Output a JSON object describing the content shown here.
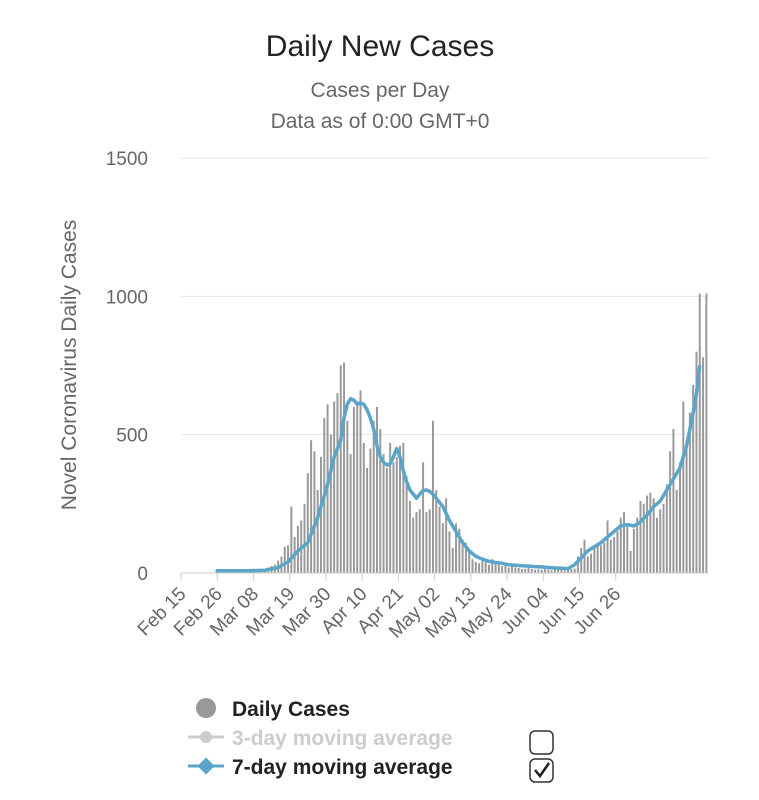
{
  "chart_data": {
    "type": "bar",
    "title": "Daily New Cases",
    "subtitle_lines": [
      "Cases per Day",
      "Data as of 0:00 GMT+0"
    ],
    "ylabel": "Novel Coronavirus Daily Cases",
    "xlabel": "",
    "ylim": [
      0,
      1500
    ],
    "yticks": [
      0,
      500,
      1000,
      1500
    ],
    "start_date": "Feb 15",
    "xtick_labels": [
      "Feb 15",
      "Feb 26",
      "Mar 08",
      "Mar 19",
      "Mar 30",
      "Apr 10",
      "Apr 21",
      "May 02",
      "May 13",
      "May 24",
      "Jun 04",
      "Jun 15",
      "Jun 26"
    ],
    "grid": true,
    "legend_position": "bottom",
    "series": [
      {
        "name": "Daily Cases",
        "type": "bar",
        "color": "#999999",
        "values": [
          0,
          0,
          0,
          0,
          0,
          0,
          0,
          0,
          0,
          0,
          0,
          0,
          0,
          0,
          0,
          1,
          2,
          3,
          3,
          4,
          5,
          6,
          8,
          10,
          12,
          15,
          20,
          25,
          30,
          45,
          60,
          95,
          100,
          240,
          130,
          170,
          190,
          250,
          360,
          480,
          440,
          300,
          420,
          560,
          610,
          500,
          620,
          650,
          750,
          760,
          550,
          430,
          600,
          620,
          660,
          470,
          380,
          450,
          550,
          600,
          520,
          430,
          380,
          470,
          400,
          420,
          460,
          470,
          350,
          260,
          200,
          220,
          230,
          400,
          220,
          230,
          550,
          300,
          240,
          180,
          270,
          150,
          90,
          180,
          160,
          120,
          110,
          80,
          50,
          40,
          35,
          45,
          40,
          30,
          50,
          35,
          30,
          25,
          30,
          20,
          25,
          20,
          18,
          15,
          15,
          20,
          15,
          12,
          14,
          12,
          15,
          12,
          10,
          14,
          12,
          15,
          10,
          12,
          14,
          16,
          60,
          90,
          120,
          60,
          70,
          90,
          110,
          100,
          110,
          190,
          120,
          130,
          150,
          200,
          220,
          170,
          80,
          160,
          200,
          260,
          250,
          280,
          290,
          270,
          200,
          230,
          250,
          320,
          440,
          520,
          300,
          400,
          620,
          480,
          580,
          680,
          800,
          1010,
          780,
          1010
        ],
        "encoding": "one bar per day starting Feb 15"
      },
      {
        "name": "3-day moving average",
        "type": "line",
        "color": "#cccccc",
        "visible": false
      },
      {
        "name": "7-day moving average",
        "type": "line",
        "color": "#5aa5c9",
        "visible": true,
        "points": [
          [
            10,
            8
          ],
          [
            20,
            8
          ],
          [
            25,
            10
          ],
          [
            29,
            20
          ],
          [
            32,
            40
          ],
          [
            35,
            80
          ],
          [
            38,
            110
          ],
          [
            41,
            200
          ],
          [
            44,
            320
          ],
          [
            46,
            420
          ],
          [
            48,
            480
          ],
          [
            49,
            560
          ],
          [
            50,
            610
          ],
          [
            51,
            630
          ],
          [
            52,
            625
          ],
          [
            53,
            610
          ],
          [
            54,
            615
          ],
          [
            55,
            610
          ],
          [
            56,
            590
          ],
          [
            57,
            560
          ],
          [
            58,
            520
          ],
          [
            59,
            460
          ],
          [
            60,
            420
          ],
          [
            61,
            400
          ],
          [
            62,
            390
          ],
          [
            63,
            395
          ],
          [
            64,
            420
          ],
          [
            65,
            450
          ],
          [
            66,
            420
          ],
          [
            67,
            370
          ],
          [
            68,
            330
          ],
          [
            69,
            300
          ],
          [
            70,
            285
          ],
          [
            71,
            270
          ],
          [
            72,
            285
          ],
          [
            73,
            298
          ],
          [
            74,
            300
          ],
          [
            75,
            295
          ],
          [
            76,
            285
          ],
          [
            77,
            270
          ],
          [
            79,
            240
          ],
          [
            81,
            190
          ],
          [
            83,
            150
          ],
          [
            85,
            110
          ],
          [
            87,
            80
          ],
          [
            89,
            60
          ],
          [
            91,
            50
          ],
          [
            93,
            42
          ],
          [
            95,
            38
          ],
          [
            97,
            35
          ],
          [
            99,
            30
          ],
          [
            101,
            28
          ],
          [
            103,
            26
          ],
          [
            105,
            25
          ],
          [
            107,
            23
          ],
          [
            109,
            22
          ],
          [
            111,
            20
          ],
          [
            113,
            18
          ],
          [
            115,
            17
          ],
          [
            117,
            16
          ],
          [
            119,
            30
          ],
          [
            121,
            55
          ],
          [
            123,
            80
          ],
          [
            125,
            95
          ],
          [
            127,
            110
          ],
          [
            129,
            130
          ],
          [
            131,
            150
          ],
          [
            133,
            170
          ],
          [
            135,
            175
          ],
          [
            137,
            170
          ],
          [
            139,
            185
          ],
          [
            141,
            210
          ],
          [
            143,
            240
          ],
          [
            145,
            260
          ],
          [
            147,
            300
          ],
          [
            149,
            340
          ],
          [
            150,
            360
          ],
          [
            151,
            380
          ],
          [
            152,
            420
          ],
          [
            153,
            460
          ],
          [
            154,
            520
          ],
          [
            155,
            580
          ],
          [
            156,
            650
          ],
          [
            157,
            750
          ]
        ]
      }
    ]
  },
  "legend": {
    "items": [
      {
        "label": "Daily Cases",
        "color": "#999999",
        "text_color": "#222222",
        "enabled": true,
        "checkbox": false
      },
      {
        "label": "3-day moving average",
        "color": "#cccccc",
        "text_color": "#cccccc",
        "enabled": false,
        "checkbox": false
      },
      {
        "label": "7-day moving average",
        "color": "#5aa5c9",
        "text_color": "#222222",
        "enabled": true,
        "checkbox": true
      }
    ]
  }
}
